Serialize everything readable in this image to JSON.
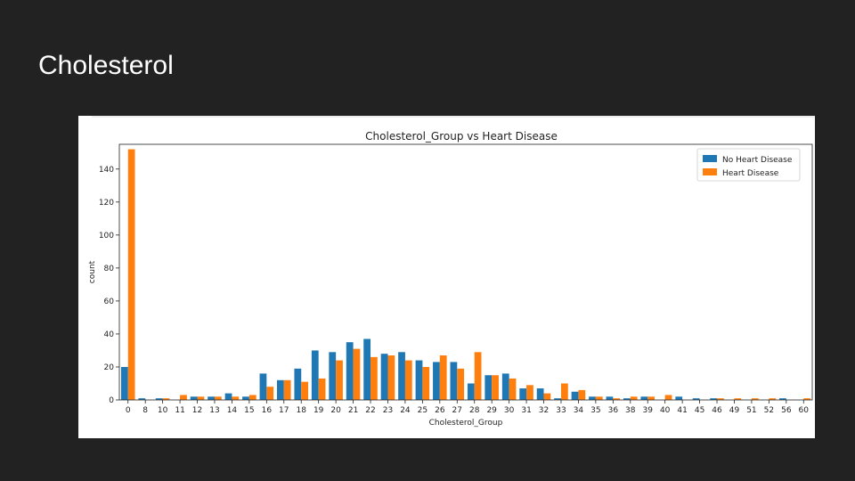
{
  "slide": {
    "title": "Cholesterol"
  },
  "chart_data": {
    "type": "bar",
    "title": "Cholesterol_Group vs Heart Disease",
    "xlabel": "Cholesterol_Group",
    "ylabel": "count",
    "ylim": [
      0,
      155
    ],
    "yticks": [
      0,
      20,
      40,
      60,
      80,
      100,
      120,
      140
    ],
    "legend_position": "top-right",
    "categories": [
      "0",
      "8",
      "10",
      "11",
      "12",
      "13",
      "14",
      "15",
      "16",
      "17",
      "18",
      "19",
      "20",
      "21",
      "22",
      "23",
      "24",
      "25",
      "26",
      "27",
      "28",
      "29",
      "30",
      "31",
      "32",
      "33",
      "34",
      "35",
      "36",
      "38",
      "39",
      "40",
      "41",
      "45",
      "46",
      "49",
      "51",
      "52",
      "56",
      "60"
    ],
    "series": [
      {
        "name": "No Heart Disease",
        "color": "#1f77b4",
        "values": [
          20,
          1,
          1,
          0,
          2,
          2,
          4,
          2,
          16,
          12,
          19,
          30,
          29,
          35,
          37,
          28,
          29,
          24,
          23,
          23,
          10,
          15,
          16,
          7,
          7,
          1,
          5,
          2,
          2,
          1,
          2,
          0,
          2,
          1,
          1,
          0,
          0,
          0,
          1,
          0
        ]
      },
      {
        "name": "Heart Disease",
        "color": "#ff7f0e",
        "values": [
          152,
          0,
          1,
          3,
          2,
          2,
          2,
          3,
          8,
          12,
          11,
          13,
          24,
          31,
          26,
          27,
          24,
          20,
          27,
          19,
          29,
          15,
          13,
          9,
          4,
          10,
          6,
          2,
          1,
          2,
          2,
          3,
          0,
          0,
          1,
          1,
          1,
          1,
          0,
          1
        ]
      }
    ]
  }
}
